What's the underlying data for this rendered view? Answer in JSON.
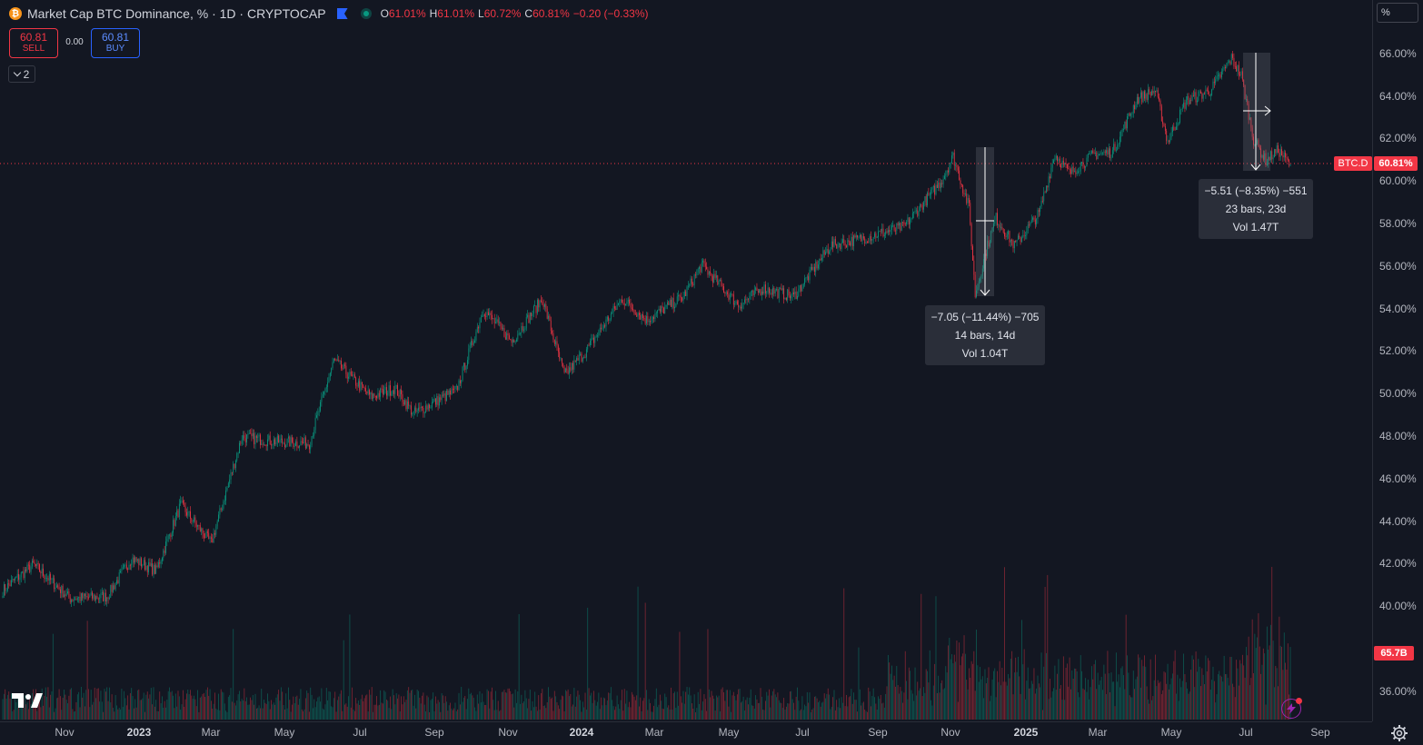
{
  "legend": {
    "title": "Market Cap BTC Dominance, % · 1D · CRYPTOCAP",
    "btc_symbol": "₿",
    "ohlc": {
      "o_label": "O",
      "o": "61.01%",
      "h_label": "H",
      "h": "61.01%",
      "l_label": "L",
      "l": "60.72%",
      "c_label": "C",
      "c": "60.81%",
      "change": "−0.20 (−0.33%)"
    }
  },
  "trade": {
    "sell_price": "60.81",
    "sell_label": "SELL",
    "spread": "0.00",
    "buy_price": "60.81",
    "buy_label": "BUY"
  },
  "indicators_count": "2",
  "scale_mode": "%",
  "price_axis": {
    "labels": [
      "66.00%",
      "64.00%",
      "62.00%",
      "60.00%",
      "58.00%",
      "56.00%",
      "54.00%",
      "52.00%",
      "50.00%",
      "48.00%",
      "46.00%",
      "44.00%",
      "42.00%",
      "40.00%",
      "36.00%"
    ]
  },
  "time_axis": {
    "labels": [
      {
        "text": "Nov",
        "major": false
      },
      {
        "text": "2023",
        "major": true
      },
      {
        "text": "Mar",
        "major": false
      },
      {
        "text": "May",
        "major": false
      },
      {
        "text": "Jul",
        "major": false
      },
      {
        "text": "Sep",
        "major": false
      },
      {
        "text": "Nov",
        "major": false
      },
      {
        "text": "2024",
        "major": true
      },
      {
        "text": "Mar",
        "major": false
      },
      {
        "text": "May",
        "major": false
      },
      {
        "text": "Jul",
        "major": false
      },
      {
        "text": "Sep",
        "major": false
      },
      {
        "text": "Nov",
        "major": false
      },
      {
        "text": "2025",
        "major": true
      },
      {
        "text": "Mar",
        "major": false
      },
      {
        "text": "May",
        "major": false
      },
      {
        "text": "Jul",
        "major": false
      },
      {
        "text": "Sep",
        "major": false
      }
    ]
  },
  "last_price": {
    "symbol": "BTC.D",
    "value": "60.81%"
  },
  "last_volume": "65.7B",
  "measurements": [
    {
      "line1": "−7.05 (−11.44%) −705",
      "line2": "14 bars, 14d",
      "line3": "Vol 1.04T"
    },
    {
      "line1": "−5.51 (−8.35%) −551",
      "line2": "23 bars, 23d",
      "line3": "Vol 1.47T"
    }
  ],
  "colors": {
    "up": "#089981",
    "down": "#f23645",
    "background": "#131722",
    "grid": "#2a2e39"
  },
  "icons": [
    "btc-logo-icon",
    "flag-icon",
    "status-dot-icon",
    "chevron-down-icon",
    "tradingview-logo-icon",
    "lightning-alert-icon",
    "settings-gear-icon"
  ],
  "chart_data": {
    "type": "candlestick",
    "symbol": "BTC.D",
    "interval": "1D",
    "ylim": [
      35,
      66.5
    ],
    "ticks": [
      66,
      64,
      62,
      60,
      58,
      56,
      54,
      52,
      50,
      48,
      46,
      44,
      42,
      40,
      36
    ],
    "anchors": [
      {
        "d": 0,
        "v": 40.8
      },
      {
        "d": 25,
        "v": 42.0
      },
      {
        "d": 55,
        "v": 40.4
      },
      {
        "d": 85,
        "v": 40.5
      },
      {
        "d": 105,
        "v": 42.3
      },
      {
        "d": 125,
        "v": 41.7
      },
      {
        "d": 145,
        "v": 44.8
      },
      {
        "d": 170,
        "v": 43.0
      },
      {
        "d": 195,
        "v": 48.0
      },
      {
        "d": 220,
        "v": 47.8
      },
      {
        "d": 250,
        "v": 47.7
      },
      {
        "d": 270,
        "v": 51.6
      },
      {
        "d": 300,
        "v": 49.9
      },
      {
        "d": 320,
        "v": 50.3
      },
      {
        "d": 335,
        "v": 49.1
      },
      {
        "d": 370,
        "v": 50.2
      },
      {
        "d": 392,
        "v": 54.0
      },
      {
        "d": 415,
        "v": 52.5
      },
      {
        "d": 440,
        "v": 54.5
      },
      {
        "d": 458,
        "v": 50.9
      },
      {
        "d": 475,
        "v": 52.0
      },
      {
        "d": 505,
        "v": 54.5
      },
      {
        "d": 525,
        "v": 53.5
      },
      {
        "d": 555,
        "v": 54.6
      },
      {
        "d": 570,
        "v": 56.1
      },
      {
        "d": 600,
        "v": 54.2
      },
      {
        "d": 620,
        "v": 55.0
      },
      {
        "d": 645,
        "v": 54.6
      },
      {
        "d": 675,
        "v": 57.0
      },
      {
        "d": 705,
        "v": 57.4
      },
      {
        "d": 735,
        "v": 57.9
      },
      {
        "d": 765,
        "v": 60.0
      },
      {
        "d": 775,
        "v": 61.2
      },
      {
        "d": 788,
        "v": 58.8
      },
      {
        "d": 793,
        "v": 54.7
      },
      {
        "d": 803,
        "v": 57.0
      },
      {
        "d": 810,
        "v": 58.3
      },
      {
        "d": 825,
        "v": 57.0
      },
      {
        "d": 845,
        "v": 58.5
      },
      {
        "d": 858,
        "v": 61.3
      },
      {
        "d": 870,
        "v": 60.4
      },
      {
        "d": 890,
        "v": 61.3
      },
      {
        "d": 905,
        "v": 61.4
      },
      {
        "d": 925,
        "v": 63.9
      },
      {
        "d": 940,
        "v": 64.3
      },
      {
        "d": 950,
        "v": 61.9
      },
      {
        "d": 965,
        "v": 63.8
      },
      {
        "d": 985,
        "v": 64.3
      },
      {
        "d": 1002,
        "v": 65.8
      },
      {
        "d": 1010,
        "v": 65.0
      },
      {
        "d": 1020,
        "v": 62.0
      },
      {
        "d": 1030,
        "v": 61.0
      },
      {
        "d": 1040,
        "v": 61.5
      },
      {
        "d": 1050,
        "v": 60.8
      }
    ]
  }
}
